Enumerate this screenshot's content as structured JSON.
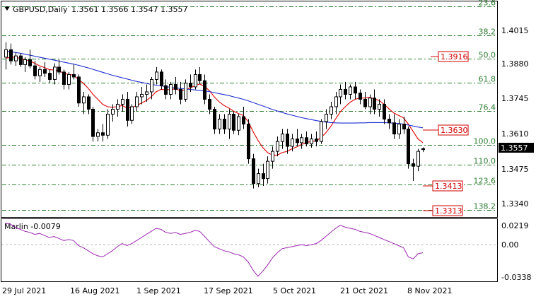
{
  "header": {
    "symbol_text": "GBPUSD,Daily",
    "ohlc_text": "1.3561 1.3566 1.3547 1.3557"
  },
  "price_axis": {
    "ticks": [
      "1.4015",
      "1.3880",
      "1.3745",
      "1.3610",
      "1.3475",
      "1.3340"
    ],
    "current": "1.3557"
  },
  "fib_levels": [
    {
      "label": "23.6",
      "price": 1.4134
    },
    {
      "label": "38.2",
      "price": 1.4017
    },
    {
      "label": "50.0",
      "price": 1.3923
    },
    {
      "label": "61.8",
      "price": 1.3828
    },
    {
      "label": "76.4",
      "price": 1.3712
    },
    {
      "label": "100.0",
      "price": 1.3576
    },
    {
      "label": "110.0",
      "price": 1.3497
    },
    {
      "label": "123.6",
      "price": 1.3416
    },
    {
      "label": "138.2",
      "price": 1.3313
    }
  ],
  "price_tags": [
    "1.3916",
    "1.3630",
    "1.3413",
    "1.3313"
  ],
  "oscillator": {
    "title": "Marlin -0.0079",
    "ticks": [
      "0.0219",
      "0.00",
      "-0.0338"
    ]
  },
  "date_axis": [
    "29 Jul 2021",
    "16 Aug 2021",
    "1 Sep 2021",
    "17 Sep 2021",
    "5 Oct 2021",
    "21 Oct 2021",
    "8 Nov 2021"
  ],
  "colors": {
    "bull": "#ffffff",
    "bear": "#000000",
    "ma_fast": "#e00000",
    "ma_slow": "#1f2fd0",
    "fib": "#2e7d32",
    "oscillator": "#9c27b0"
  },
  "chart_data": {
    "type": "candlestick",
    "series": [
      {
        "name": "GBPUSD",
        "ohlc": [
          [
            1.393,
            1.399,
            1.388,
            1.396
          ],
          [
            1.396,
            1.3985,
            1.39,
            1.3915
          ],
          [
            1.3915,
            1.395,
            1.3895,
            1.3935
          ],
          [
            1.3935,
            1.3945,
            1.389,
            1.39
          ],
          [
            1.39,
            1.393,
            1.387,
            1.392
          ],
          [
            1.392,
            1.396,
            1.3885,
            1.3895
          ],
          [
            1.3895,
            1.3915,
            1.384,
            1.3855
          ],
          [
            1.3855,
            1.389,
            1.383,
            1.388
          ],
          [
            1.388,
            1.391,
            1.385,
            1.3865
          ],
          [
            1.3865,
            1.388,
            1.3825,
            1.384
          ],
          [
            1.384,
            1.3905,
            1.382,
            1.389
          ],
          [
            1.389,
            1.392,
            1.386,
            1.387
          ],
          [
            1.387,
            1.388,
            1.38,
            1.382
          ],
          [
            1.382,
            1.387,
            1.38,
            1.386
          ],
          [
            1.386,
            1.39,
            1.384,
            1.385
          ],
          [
            1.385,
            1.386,
            1.373,
            1.3745
          ],
          [
            1.3745,
            1.379,
            1.37,
            1.377
          ],
          [
            1.377,
            1.378,
            1.37,
            1.372
          ],
          [
            1.372,
            1.373,
            1.359,
            1.361
          ],
          [
            1.361,
            1.364,
            1.359,
            1.3625
          ],
          [
            1.3625,
            1.366,
            1.359,
            1.3615
          ],
          [
            1.3615,
            1.372,
            1.36,
            1.37
          ],
          [
            1.37,
            1.374,
            1.367,
            1.372
          ],
          [
            1.372,
            1.376,
            1.369,
            1.374
          ],
          [
            1.374,
            1.378,
            1.371,
            1.376
          ],
          [
            1.376,
            1.379,
            1.365,
            1.3675
          ],
          [
            1.3675,
            1.374,
            1.366,
            1.373
          ],
          [
            1.373,
            1.379,
            1.371,
            1.377
          ],
          [
            1.377,
            1.381,
            1.374,
            1.378
          ],
          [
            1.378,
            1.382,
            1.375,
            1.379
          ],
          [
            1.379,
            1.385,
            1.376,
            1.384
          ],
          [
            1.384,
            1.389,
            1.382,
            1.387
          ],
          [
            1.387,
            1.388,
            1.38,
            1.3815
          ],
          [
            1.3815,
            1.384,
            1.376,
            1.378
          ],
          [
            1.378,
            1.383,
            1.376,
            1.382
          ],
          [
            1.382,
            1.385,
            1.378,
            1.38
          ],
          [
            1.38,
            1.383,
            1.374,
            1.376
          ],
          [
            1.376,
            1.384,
            1.375,
            1.3825
          ],
          [
            1.3825,
            1.386,
            1.379,
            1.381
          ],
          [
            1.381,
            1.388,
            1.38,
            1.386
          ],
          [
            1.386,
            1.389,
            1.382,
            1.3835
          ],
          [
            1.3835,
            1.386,
            1.374,
            1.376
          ],
          [
            1.376,
            1.378,
            1.37,
            1.372
          ],
          [
            1.372,
            1.373,
            1.362,
            1.364
          ],
          [
            1.364,
            1.37,
            1.362,
            1.368
          ],
          [
            1.368,
            1.37,
            1.362,
            1.364
          ],
          [
            1.364,
            1.372,
            1.36,
            1.37
          ],
          [
            1.37,
            1.371,
            1.362,
            1.3635
          ],
          [
            1.3635,
            1.37,
            1.3615,
            1.369
          ],
          [
            1.369,
            1.373,
            1.364,
            1.366
          ],
          [
            1.366,
            1.368,
            1.35,
            1.352
          ],
          [
            1.352,
            1.354,
            1.34,
            1.342
          ],
          [
            1.342,
            1.348,
            1.3405,
            1.346
          ],
          [
            1.346,
            1.35,
            1.341,
            1.344
          ],
          [
            1.344,
            1.353,
            1.342,
            1.351
          ],
          [
            1.351,
            1.357,
            1.348,
            1.355
          ],
          [
            1.355,
            1.361,
            1.353,
            1.359
          ],
          [
            1.359,
            1.364,
            1.356,
            1.362
          ],
          [
            1.362,
            1.364,
            1.354,
            1.357
          ],
          [
            1.357,
            1.362,
            1.355,
            1.36
          ],
          [
            1.36,
            1.364,
            1.357,
            1.3585
          ],
          [
            1.3585,
            1.362,
            1.356,
            1.3605
          ],
          [
            1.3605,
            1.363,
            1.357,
            1.358
          ],
          [
            1.358,
            1.362,
            1.3565,
            1.36
          ],
          [
            1.36,
            1.363,
            1.357,
            1.359
          ],
          [
            1.359,
            1.368,
            1.358,
            1.367
          ],
          [
            1.367,
            1.372,
            1.364,
            1.37
          ],
          [
            1.37,
            1.375,
            1.368,
            1.373
          ],
          [
            1.373,
            1.379,
            1.37,
            1.377
          ],
          [
            1.377,
            1.382,
            1.374,
            1.38
          ],
          [
            1.38,
            1.383,
            1.376,
            1.378
          ],
          [
            1.378,
            1.382,
            1.376,
            1.381
          ],
          [
            1.381,
            1.383,
            1.376,
            1.3785
          ],
          [
            1.3785,
            1.38,
            1.374,
            1.376
          ],
          [
            1.376,
            1.379,
            1.372,
            1.373
          ],
          [
            1.373,
            1.378,
            1.37,
            1.3765
          ],
          [
            1.3765,
            1.38,
            1.37,
            1.372
          ],
          [
            1.372,
            1.376,
            1.369,
            1.374
          ],
          [
            1.374,
            1.376,
            1.366,
            1.368
          ],
          [
            1.368,
            1.37,
            1.364,
            1.3665
          ],
          [
            1.3665,
            1.37,
            1.36,
            1.362
          ],
          [
            1.362,
            1.368,
            1.36,
            1.366
          ],
          [
            1.366,
            1.369,
            1.362,
            1.364
          ],
          [
            1.364,
            1.365,
            1.348,
            1.35
          ],
          [
            1.35,
            1.352,
            1.343,
            1.349
          ],
          [
            1.349,
            1.356,
            1.347,
            1.355
          ],
          [
            1.3561,
            1.3566,
            1.3547,
            1.3557
          ]
        ]
      },
      {
        "name": "MA-fast",
        "values": [
          1.3925,
          1.393,
          1.393,
          1.3925,
          1.392,
          1.3915,
          1.3905,
          1.3895,
          1.3888,
          1.388,
          1.3878,
          1.3875,
          1.3865,
          1.386,
          1.3858,
          1.384,
          1.3825,
          1.3805,
          1.378,
          1.376,
          1.374,
          1.373,
          1.3728,
          1.373,
          1.3735,
          1.3725,
          1.3727,
          1.3735,
          1.3745,
          1.3755,
          1.377,
          1.379,
          1.38,
          1.3798,
          1.38,
          1.3802,
          1.3795,
          1.3798,
          1.3805,
          1.3815,
          1.3822,
          1.3812,
          1.3795,
          1.377,
          1.375,
          1.3735,
          1.3725,
          1.3712,
          1.3702,
          1.3695,
          1.367,
          1.363,
          1.3595,
          1.3565,
          1.3545,
          1.3535,
          1.3535,
          1.3545,
          1.355,
          1.356,
          1.3568,
          1.3578,
          1.3585,
          1.359,
          1.3592,
          1.3605,
          1.3625,
          1.365,
          1.368,
          1.371,
          1.373,
          1.3748,
          1.376,
          1.3765,
          1.3765,
          1.3768,
          1.3762,
          1.3755,
          1.374,
          1.3722,
          1.3705,
          1.3695,
          1.3685,
          1.366,
          1.363,
          1.36,
          1.3585
        ]
      },
      {
        "name": "MA-slow",
        "values": [
          1.3955,
          1.3952,
          1.3949,
          1.3946,
          1.3942,
          1.3938,
          1.3934,
          1.393,
          1.3926,
          1.3922,
          1.3918,
          1.3914,
          1.391,
          1.3906,
          1.3902,
          1.3897,
          1.3892,
          1.3887,
          1.3881,
          1.3875,
          1.3869,
          1.3863,
          1.3857,
          1.3852,
          1.3847,
          1.3842,
          1.3837,
          1.3832,
          1.3828,
          1.3824,
          1.382,
          1.3817,
          1.3814,
          1.3811,
          1.3808,
          1.3806,
          1.3804,
          1.3802,
          1.38,
          1.3798,
          1.3796,
          1.3794,
          1.3791,
          1.3787,
          1.3783,
          1.3779,
          1.3775,
          1.377,
          1.3765,
          1.376,
          1.3754,
          1.3747,
          1.374,
          1.3733,
          1.3726,
          1.3719,
          1.3713,
          1.3707,
          1.3701,
          1.3696,
          1.3691,
          1.3686,
          1.3682,
          1.3678,
          1.3674,
          1.3671,
          1.3668,
          1.3666,
          1.3665,
          1.3664,
          1.3664,
          1.3664,
          1.3664,
          1.3665,
          1.3665,
          1.3666,
          1.3666,
          1.3666,
          1.3666,
          1.3665,
          1.3664,
          1.3662,
          1.366,
          1.3656,
          1.3652,
          1.3648,
          1.3645
        ]
      },
      {
        "name": "Marlin",
        "values": [
          0.021,
          0.02,
          0.017,
          0.015,
          0.013,
          0.012,
          0.01,
          0.011,
          0.009,
          0.007,
          0.008,
          0.006,
          0.004,
          0.005,
          0.004,
          -0.001,
          -0.003,
          -0.006,
          -0.009,
          -0.011,
          -0.012,
          -0.009,
          -0.006,
          -0.002,
          0.001,
          -0.001,
          0.001,
          0.004,
          0.007,
          0.01,
          0.013,
          0.016,
          0.015,
          0.012,
          0.011,
          0.012,
          0.01,
          0.011,
          0.012,
          0.014,
          0.013,
          0.008,
          0.003,
          -0.002,
          -0.004,
          -0.006,
          -0.007,
          -0.009,
          -0.01,
          -0.012,
          -0.017,
          -0.025,
          -0.031,
          -0.026,
          -0.02,
          -0.013,
          -0.008,
          -0.004,
          -0.003,
          -0.002,
          -0.001,
          0.0,
          -0.001,
          0.0,
          0.001,
          0.004,
          0.008,
          0.012,
          0.016,
          0.019,
          0.017,
          0.016,
          0.015,
          0.013,
          0.012,
          0.011,
          0.009,
          0.007,
          0.005,
          0.003,
          0.001,
          -0.001,
          -0.003,
          -0.012,
          -0.014,
          -0.009,
          -0.0079
        ]
      }
    ],
    "price_range": [
      1.3285,
      1.4155
    ],
    "oscillator_range": [
      -0.036,
      0.025
    ],
    "grid": false
  }
}
